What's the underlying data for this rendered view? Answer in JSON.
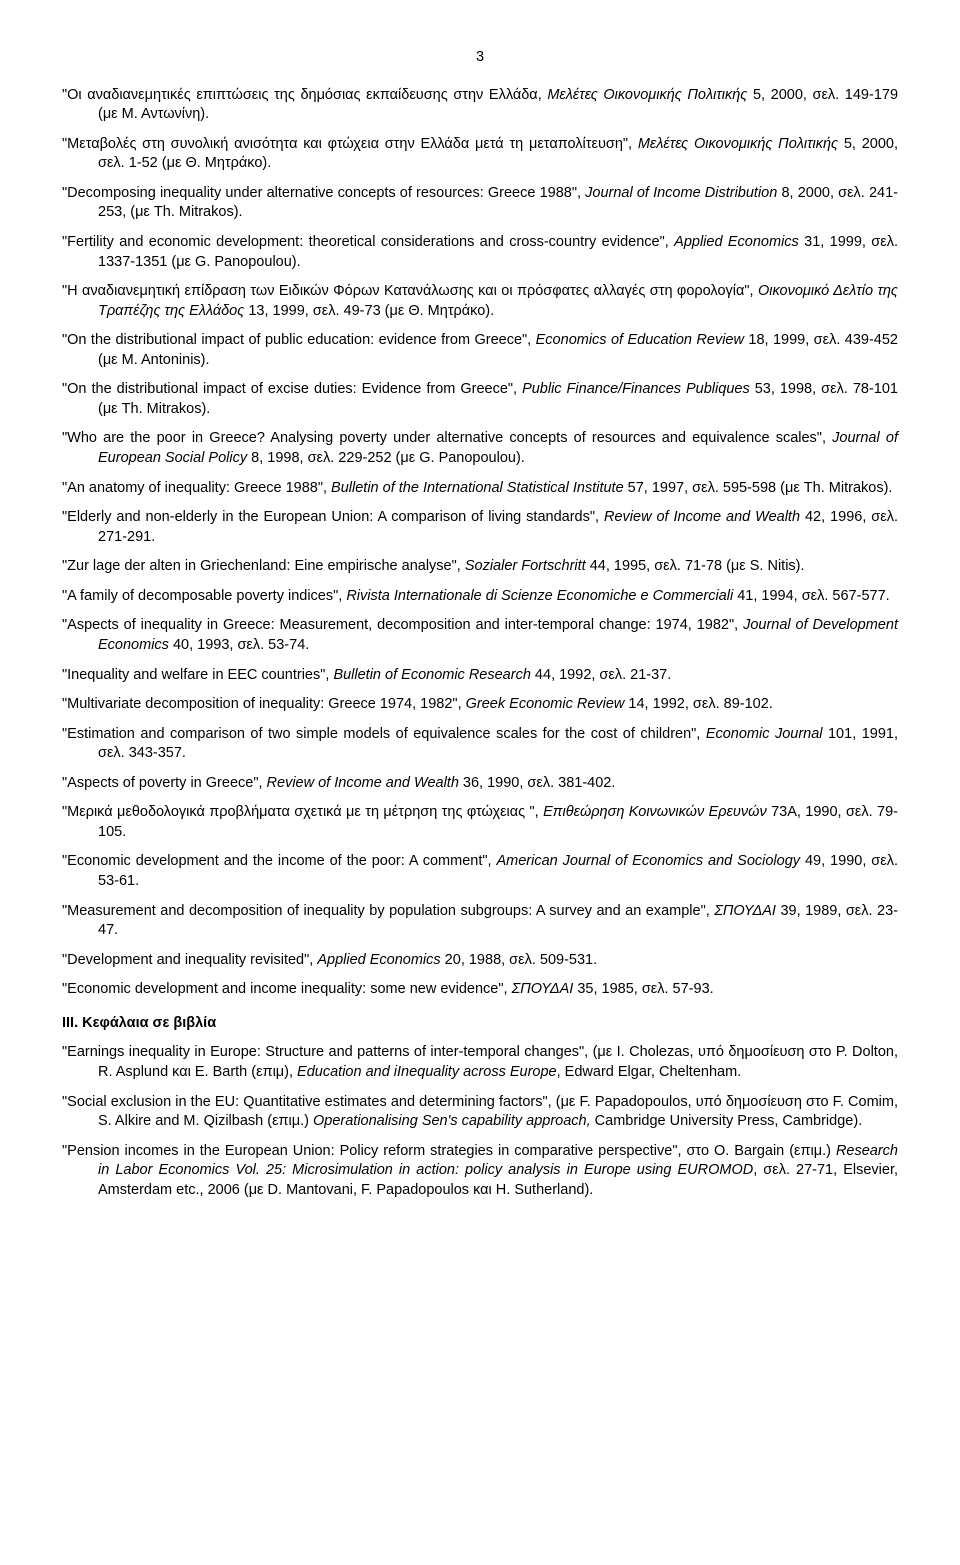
{
  "page_number": "3",
  "entries": [
    {
      "html": "\"Οι αναδιανεμητικές επιπτώσεις της δημόσιας εκπαίδευσης στην Ελλάδα, <span class='italic'>Μελέτες Οικονομικής Πολιτικής</span> 5, 2000, σελ. 149-179 (με Μ. Αντωνίνη)."
    },
    {
      "html": "\"Μεταβολές στη συνολική ανισότητα και φτώχεια στην Ελλάδα μετά τη μεταπολίτευση\", <span class='italic'>Μελέτες Οικονομικής Πολιτικής</span> 5, 2000, σελ. 1-52 (με Θ. Μητράκο)."
    },
    {
      "html": "\"Decomposing inequality under alternative concepts of resources: Greece 1988\", <span class='italic'>Journal of Income Distribution</span> 8, 2000, σελ. 241-253, (με Th. Mitrakos)."
    },
    {
      "html": "\"Fertility and economic development: theoretical considerations and cross-country evidence\", <span class='italic'>Applied Economics</span> 31, 1999, σελ. 1337-1351 (με G. Panopoulou)."
    },
    {
      "html": "\"Η αναδιανεμητική επίδραση των Ειδικών Φόρων Κατανάλωσης και οι πρόσφατες αλλαγές στη φορολογία\", <span class='italic'>Οικονομικό Δελτίο της Τραπέζης της Ελλάδος</span> 13, 1999, σελ. 49-73 (με Θ. Μητράκο)."
    },
    {
      "html": "\"On the distributional impact of public education: evidence from Greece\", <span class='italic'>Economics of Education Review</span> 18, 1999, σελ. 439-452 (με M. Antoninis)."
    },
    {
      "html": "\"On the distributional impact of excise duties: Evidence from Greece\", <span class='italic'>Public Finance/Finances Publiques</span> 53, 1998, σελ. 78-101 (με Th. Mitrakos)."
    },
    {
      "html": "\"Who are the poor in Greece? Analysing poverty under alternative concepts of resources and equivalence scales\", <span class='italic'>Journal of European Social Policy</span> 8, 1998, σελ. 229-252 (με G. Panopoulou)."
    },
    {
      "html": "\"An anatomy of inequality: Greece 1988\", <span class='italic'>Bulletin of the International Statistical Institute</span> 57, 1997, σελ. 595-598 (με Th. Mitrakos)."
    },
    {
      "html": "\"Elderly and non-elderly in the European Union: A comparison of living standards\", <span class='italic'>Review of Income and Wealth</span> 42, 1996, σελ. 271-291."
    },
    {
      "html": "\"Zur lage der alten in Griechenland: Eine empirische analyse\", <span class='italic'>Sozialer Fortschritt</span> 44, 1995, σελ. 71-78 (με S. Nitis)."
    },
    {
      "html": "\"A family of decomposable poverty indices\", <span class='italic'>Rivista Internationale di Scienze Economiche e Commerciali</span> 41, 1994, σελ. 567-577."
    },
    {
      "html": "\"Aspects of inequality in Greece: Measurement, decomposition and inter-temporal change: 1974, 1982\", <span class='italic'>Journal of Development Economics</span> 40, 1993, σελ. 53-74."
    },
    {
      "html": "\"Inequality and welfare in EEC countries\", <span class='italic'>Bulletin of Economic Research</span> 44, 1992, σελ. 21-37."
    },
    {
      "html": "\"Multivariate decomposition of inequality: Greece 1974, 1982\", <span class='italic'>Greek Economic Review</span> 14, 1992, σελ. 89-102."
    },
    {
      "html": "\"Estimation and comparison of two simple models of equivalence scales for the cost of children\", <span class='italic'>Economic Journal</span> 101, 1991, σελ. 343-357."
    },
    {
      "html": "\"Aspects of poverty in Greece\", <span class='italic'>Review of Income and Wealth</span> 36, 1990, σελ. 381-402."
    },
    {
      "html": "\"Μερικά μεθοδολογικά προβλήματα σχετικά με τη μέτρηση της φτώχειας \", <span class='italic'>Επιθεώρηση Κοινωνικών Ερευνών</span> 73Α, 1990, σελ. 79-105."
    },
    {
      "html": "\"Economic development and the income of the poor: A comment\", <span class='italic'>American Journal of Economics and Sociology</span> 49, 1990, σελ. 53-61."
    },
    {
      "html": "\"Measurement and decomposition of inequality by population subgroups: A survey and an example\", <span class='italic'>ΣΠΟΥΔΑΙ</span> 39, 1989, σελ. 23-47."
    },
    {
      "html": "\"Development and inequality revisited\", <span class='italic'>Applied Economics</span> 20, 1988, σελ. 509-531."
    },
    {
      "html": "\"Economic development and income inequality: some new evidence\", <span class='italic'>ΣΠΟΥΔΑΙ</span> 35, 1985, σελ. 57-93."
    }
  ],
  "section_heading": "ΙΙΙ.  Κεφάλαια σε βιβλία",
  "section_entries": [
    {
      "html": "\"Earnings inequality in Europe: Structure and patterns of inter-temporal changes\", (με I. Cholezas, υπό δημοσίευση στο P. Dolton, R. Asplund και E. Barth (επιμ), <span class='italic'>Education and iInequality across Europe</span>, Edward Elgar, Cheltenham."
    },
    {
      "html": "\"Social exclusion in the EU: Quantitative estimates and determining factors\", (με F. Papadopoulos, υπό δημοσίευση στο F. Comim, S. Alkire and M. Qizilbash (επιμ.) <span class='italic'>Operationalising Sen's capability approach,</span> Cambridge University Press, Cambridge)."
    },
    {
      "html": "\"Pension incomes in the European Union: Policy reform strategies in comparative perspective\", στο O. Bargain (επιμ.) <span class='italic'>Research in Labor Economics Vol. 25: Microsimulation in action: policy analysis in Europe using EUROMOD</span>, σελ. 27-71, Elsevier, Amsterdam etc., 2006 (με D. Mantovani, F. Papadopoulos και H. Sutherland)."
    }
  ]
}
